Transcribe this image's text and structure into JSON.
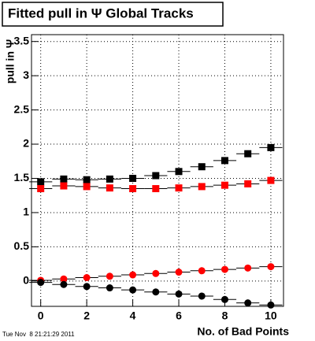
{
  "chart_data": {
    "type": "scatter",
    "title": "Fitted pull in Ψ   Global Tracks",
    "y_label": "pull in Ψ",
    "x_label": "No. of Bad Points",
    "timestamp": "Tue Nov  8 21:21:29 2011",
    "x": [
      0,
      1,
      2,
      3,
      4,
      5,
      6,
      7,
      8,
      9,
      10
    ],
    "xerr": 0.5,
    "series": [
      {
        "color": "#000000",
        "marker": "square",
        "values": [
          1.45,
          1.49,
          1.48,
          1.49,
          1.5,
          1.54,
          1.6,
          1.67,
          1.76,
          1.86,
          1.95
        ]
      },
      {
        "color": "#ff0000",
        "marker": "square",
        "values": [
          1.35,
          1.39,
          1.38,
          1.36,
          1.35,
          1.35,
          1.36,
          1.38,
          1.4,
          1.42,
          1.47
        ]
      },
      {
        "color": "#ff0000",
        "marker": "circle",
        "values": [
          0.01,
          0.03,
          0.05,
          0.07,
          0.09,
          0.11,
          0.13,
          0.15,
          0.17,
          0.19,
          0.21
        ]
      },
      {
        "color": "#000000",
        "marker": "circle",
        "values": [
          -0.02,
          -0.05,
          -0.08,
          -0.1,
          -0.13,
          -0.16,
          -0.19,
          -0.22,
          -0.27,
          -0.32,
          -0.35
        ]
      }
    ],
    "xlim": [
      -0.4,
      10.55
    ],
    "ylim": [
      -0.37,
      3.6
    ],
    "xticks": [
      0,
      2,
      4,
      6,
      8,
      10
    ],
    "yticks": [
      0,
      0.5,
      1,
      1.5,
      2,
      2.5,
      3,
      3.5
    ],
    "grid": true
  }
}
